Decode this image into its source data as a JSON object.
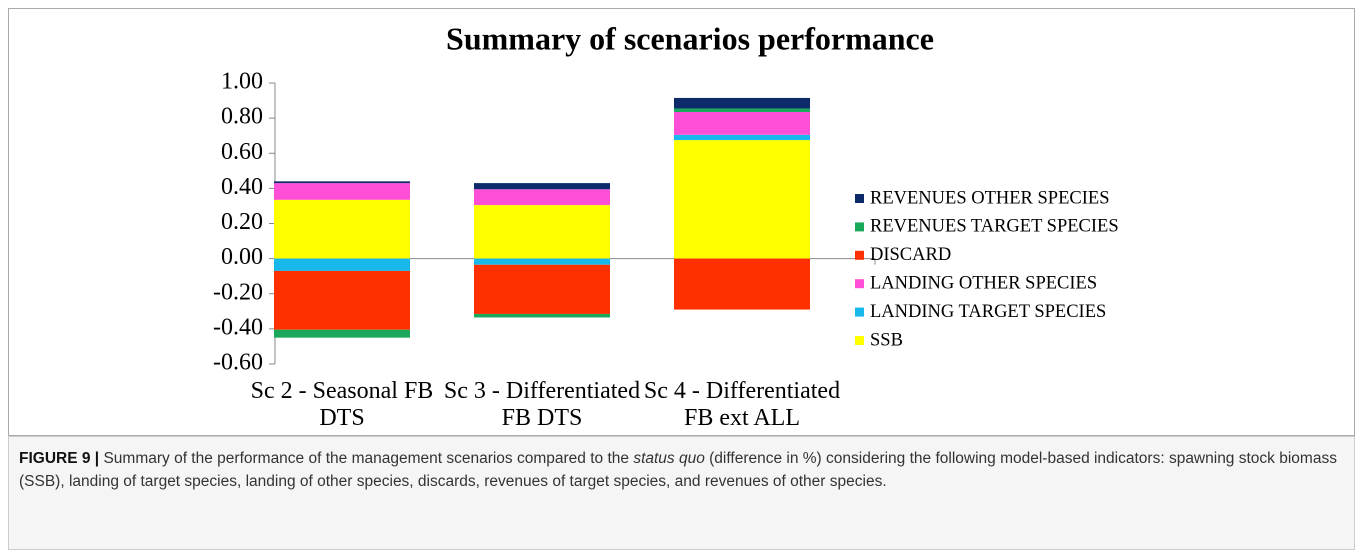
{
  "chart_data": {
    "type": "bar",
    "stacked": true,
    "title": "Summary of scenarios performance",
    "categories": [
      "Sc 2 - Seasonal FB DTS",
      "Sc 3 - Differentiated FB DTS",
      "Sc 4 - Differentiated FB ext ALL"
    ],
    "series": [
      {
        "name": "SSB",
        "color": "#ffff00",
        "values": [
          0.335,
          0.305,
          0.675
        ]
      },
      {
        "name": "LANDING TARGET SPECIES",
        "color": "#19b8ec",
        "values": [
          -0.07,
          -0.035,
          0.03
        ]
      },
      {
        "name": "LANDING OTHER SPECIES",
        "color": "#ff4fd6",
        "values": [
          0.095,
          0.09,
          0.13
        ]
      },
      {
        "name": "DISCARD",
        "color": "#ff3000",
        "values": [
          -0.335,
          -0.28,
          -0.29
        ]
      },
      {
        "name": "REVENUES TARGET SPECIES",
        "color": "#1aa85a",
        "values": [
          -0.045,
          -0.02,
          0.02
        ]
      },
      {
        "name": "REVENUES OTHER SPECIES",
        "color": "#0d2a6b",
        "values": [
          0.01,
          0.035,
          0.06
        ]
      }
    ],
    "ylim": [
      -0.6,
      1.0
    ],
    "yticks": [
      {
        "value": 1.0,
        "label": "1.00"
      },
      {
        "value": 0.8,
        "label": "0.80"
      },
      {
        "value": 0.6,
        "label": "0.60"
      },
      {
        "value": 0.4,
        "label": "0.40"
      },
      {
        "value": 0.2,
        "label": "0.20"
      },
      {
        "value": 0,
        "label": "0.00"
      },
      {
        "value": -0.2,
        "label": "-0.20"
      },
      {
        "value": -0.4,
        "label": "-0.40"
      },
      {
        "value": -0.6,
        "label": "-0.60"
      }
    ],
    "grid": false,
    "legend": "right"
  },
  "caption": {
    "label": "FIGURE 9 |",
    "parts": [
      "Summary of the performance of the management scenarios compared to the ",
      "status quo",
      " (difference in %) considering the following model-based indicators: spawning stock biomass (SSB), landing of target species, landing of other species, discards, revenues of target species, and revenues of other species."
    ]
  }
}
